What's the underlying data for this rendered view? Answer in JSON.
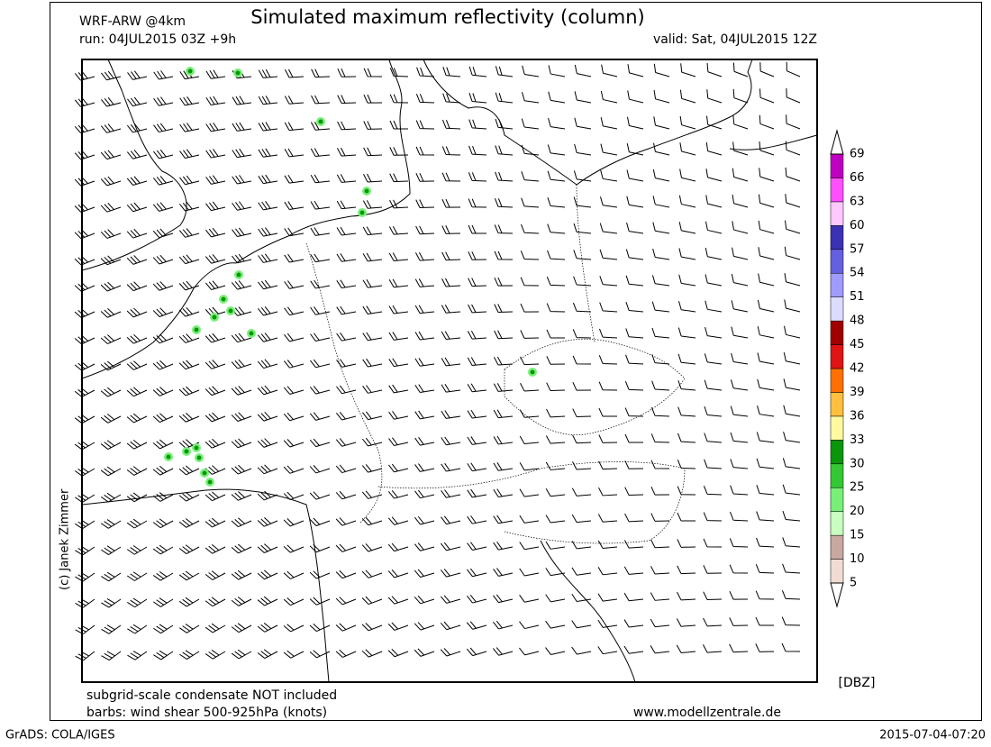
{
  "header": {
    "model": "WRF-ARW @4km",
    "title": "Simulated maximum reflectivity (column)",
    "run": "run: 04JUL2015 03Z +9h",
    "valid": "valid: Sat, 04JUL2015 12Z"
  },
  "colorbar": {
    "unit": "[DBZ]",
    "levels": [
      5,
      10,
      15,
      20,
      25,
      30,
      33,
      36,
      39,
      42,
      45,
      48,
      51,
      54,
      57,
      60,
      63,
      66,
      69
    ],
    "colors": [
      "#f0dcd2",
      "#c8a8a0",
      "#c8ffc0",
      "#78f078",
      "#34c834",
      "#0a960a",
      "#fffaa0",
      "#ffc040",
      "#ff7000",
      "#e01414",
      "#a00000",
      "#dcdcff",
      "#a09cff",
      "#6460e0",
      "#3c30b4",
      "#ffc8ff",
      "#ff50ff",
      "#c000c0"
    ]
  },
  "notes": [
    "subgrid-scale condensate NOT included",
    "barbs: wind shear 500-925hPa (knots)"
  ],
  "website": "www.modellzentrale.de",
  "credit": "(c) Janek Zimmer",
  "footer": {
    "software": "GrADS: COLA/IGES",
    "timestamp": "2015-07-04-07:20"
  }
}
